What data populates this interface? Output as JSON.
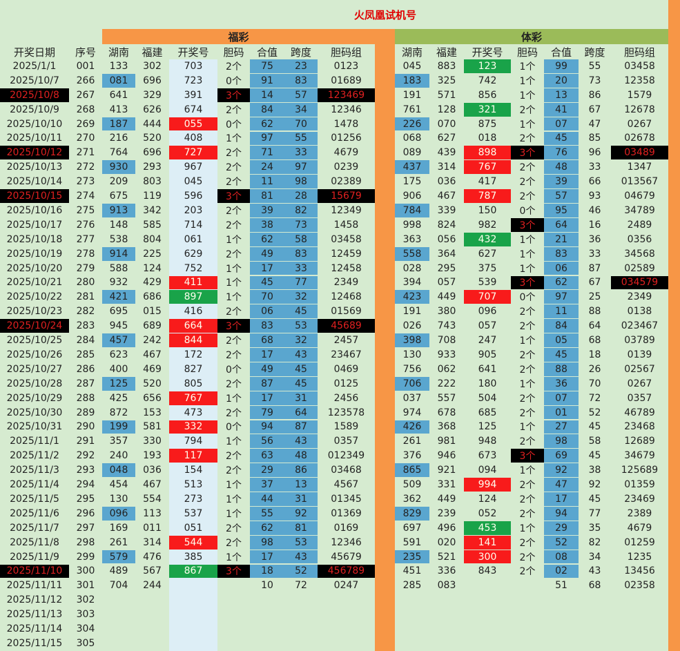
{
  "header": {
    "title": "火凤凰试机号",
    "groups": [
      "福彩",
      "体彩"
    ],
    "columns": [
      "开奖日期",
      "序号",
      "湖南",
      "福建",
      "开奖号",
      "胆码",
      "合值",
      "跨度",
      "胆码组",
      "湖南",
      "福建",
      "开奖号",
      "胆码",
      "合值",
      "跨度",
      "胆码组"
    ]
  },
  "table": {
    "rows": [
      [
        "2025/1/1",
        "001",
        "133",
        "302",
        "703",
        "2个",
        "75",
        "23",
        "0123",
        "045",
        "883",
        "123",
        "1个",
        "99",
        "55",
        "03458"
      ],
      [
        "2025/10/7",
        "266",
        "081",
        "696",
        "723",
        "0个",
        "91",
        "83",
        "01689",
        "183",
        "325",
        "742",
        "1个",
        "20",
        "73",
        "12358"
      ],
      [
        "2025/10/8",
        "267",
        "641",
        "329",
        "391",
        "3个",
        "14",
        "57",
        "123469",
        "191",
        "571",
        "856",
        "1个",
        "13",
        "86",
        "1579"
      ],
      [
        "2025/10/9",
        "268",
        "413",
        "626",
        "674",
        "2个",
        "84",
        "34",
        "12346",
        "761",
        "128",
        "321",
        "2个",
        "41",
        "67",
        "12678"
      ],
      [
        "2025/10/10",
        "269",
        "187",
        "444",
        "055",
        "0个",
        "62",
        "70",
        "1478",
        "226",
        "070",
        "875",
        "1个",
        "07",
        "47",
        "0267"
      ],
      [
        "2025/10/11",
        "270",
        "216",
        "520",
        "408",
        "1个",
        "97",
        "55",
        "01256",
        "068",
        "627",
        "018",
        "2个",
        "45",
        "85",
        "02678"
      ],
      [
        "2025/10/12",
        "271",
        "764",
        "696",
        "727",
        "2个",
        "71",
        "33",
        "4679",
        "089",
        "439",
        "898",
        "3个",
        "76",
        "96",
        "03489"
      ],
      [
        "2025/10/13",
        "272",
        "930",
        "293",
        "967",
        "2个",
        "24",
        "97",
        "0239",
        "437",
        "314",
        "767",
        "2个",
        "48",
        "33",
        "1347"
      ],
      [
        "2025/10/14",
        "273",
        "209",
        "803",
        "045",
        "2个",
        "11",
        "98",
        "02389",
        "175",
        "036",
        "417",
        "2个",
        "39",
        "66",
        "013567"
      ],
      [
        "2025/10/15",
        "274",
        "675",
        "119",
        "596",
        "3个",
        "81",
        "28",
        "15679",
        "906",
        "467",
        "787",
        "2个",
        "57",
        "93",
        "04679"
      ],
      [
        "2025/10/16",
        "275",
        "913",
        "342",
        "203",
        "2个",
        "39",
        "82",
        "12349",
        "784",
        "339",
        "150",
        "0个",
        "95",
        "46",
        "34789"
      ],
      [
        "2025/10/17",
        "276",
        "148",
        "585",
        "714",
        "2个",
        "38",
        "73",
        "1458",
        "998",
        "824",
        "982",
        "3个",
        "64",
        "16",
        "2489"
      ],
      [
        "2025/10/18",
        "277",
        "538",
        "804",
        "061",
        "1个",
        "62",
        "58",
        "03458",
        "363",
        "056",
        "432",
        "1个",
        "21",
        "36",
        "0356"
      ],
      [
        "2025/10/19",
        "278",
        "914",
        "225",
        "629",
        "2个",
        "49",
        "83",
        "12459",
        "558",
        "364",
        "627",
        "1个",
        "83",
        "33",
        "34568"
      ],
      [
        "2025/10/20",
        "279",
        "588",
        "124",
        "752",
        "1个",
        "17",
        "33",
        "12458",
        "028",
        "295",
        "375",
        "1个",
        "06",
        "87",
        "02589"
      ],
      [
        "2025/10/21",
        "280",
        "932",
        "429",
        "411",
        "1个",
        "45",
        "77",
        "2349",
        "394",
        "057",
        "539",
        "3个",
        "62",
        "67",
        "034579"
      ],
      [
        "2025/10/22",
        "281",
        "421",
        "686",
        "897",
        "1个",
        "70",
        "32",
        "12468",
        "423",
        "449",
        "707",
        "0个",
        "97",
        "25",
        "2349"
      ],
      [
        "2025/10/23",
        "282",
        "695",
        "015",
        "416",
        "2个",
        "06",
        "45",
        "01569",
        "191",
        "380",
        "096",
        "2个",
        "11",
        "88",
        "0138"
      ],
      [
        "2025/10/24",
        "283",
        "945",
        "689",
        "664",
        "3个",
        "83",
        "53",
        "45689",
        "026",
        "743",
        "057",
        "2个",
        "84",
        "64",
        "023467"
      ],
      [
        "2025/10/25",
        "284",
        "457",
        "242",
        "844",
        "2个",
        "68",
        "32",
        "2457",
        "398",
        "708",
        "247",
        "1个",
        "05",
        "68",
        "03789"
      ],
      [
        "2025/10/26",
        "285",
        "623",
        "467",
        "172",
        "2个",
        "17",
        "43",
        "23467",
        "130",
        "933",
        "905",
        "2个",
        "45",
        "18",
        "0139"
      ],
      [
        "2025/10/27",
        "286",
        "400",
        "469",
        "827",
        "0个",
        "49",
        "45",
        "0469",
        "756",
        "062",
        "641",
        "2个",
        "88",
        "26",
        "02567"
      ],
      [
        "2025/10/28",
        "287",
        "125",
        "520",
        "805",
        "2个",
        "87",
        "45",
        "0125",
        "706",
        "222",
        "180",
        "1个",
        "36",
        "70",
        "0267"
      ],
      [
        "2025/10/29",
        "288",
        "425",
        "656",
        "767",
        "1个",
        "17",
        "31",
        "2456",
        "037",
        "557",
        "504",
        "2个",
        "07",
        "72",
        "0357"
      ],
      [
        "2025/10/30",
        "289",
        "872",
        "153",
        "473",
        "2个",
        "79",
        "64",
        "123578",
        "974",
        "678",
        "685",
        "2个",
        "01",
        "52",
        "46789"
      ],
      [
        "2025/10/31",
        "290",
        "199",
        "581",
        "332",
        "0个",
        "94",
        "87",
        "1589",
        "426",
        "368",
        "125",
        "1个",
        "27",
        "45",
        "23468"
      ],
      [
        "2025/11/1",
        "291",
        "357",
        "330",
        "794",
        "1个",
        "56",
        "43",
        "0357",
        "261",
        "981",
        "948",
        "2个",
        "98",
        "58",
        "12689"
      ],
      [
        "2025/11/2",
        "292",
        "240",
        "193",
        "117",
        "2个",
        "63",
        "48",
        "012349",
        "376",
        "946",
        "673",
        "3个",
        "69",
        "45",
        "34679"
      ],
      [
        "2025/11/3",
        "293",
        "048",
        "036",
        "154",
        "2个",
        "29",
        "86",
        "03468",
        "865",
        "921",
        "094",
        "1个",
        "92",
        "38",
        "125689"
      ],
      [
        "2025/11/4",
        "294",
        "454",
        "467",
        "513",
        "1个",
        "37",
        "13",
        "4567",
        "509",
        "331",
        "994",
        "2个",
        "47",
        "92",
        "01359"
      ],
      [
        "2025/11/5",
        "295",
        "130",
        "554",
        "273",
        "1个",
        "44",
        "31",
        "01345",
        "362",
        "449",
        "124",
        "2个",
        "17",
        "45",
        "23469"
      ],
      [
        "2025/11/6",
        "296",
        "096",
        "113",
        "537",
        "1个",
        "55",
        "92",
        "01369",
        "829",
        "239",
        "052",
        "2个",
        "94",
        "77",
        "2389"
      ],
      [
        "2025/11/7",
        "297",
        "169",
        "011",
        "051",
        "2个",
        "62",
        "81",
        "0169",
        "697",
        "496",
        "453",
        "1个",
        "29",
        "35",
        "4679"
      ],
      [
        "2025/11/8",
        "298",
        "261",
        "314",
        "544",
        "2个",
        "98",
        "53",
        "12346",
        "591",
        "020",
        "141",
        "2个",
        "52",
        "82",
        "01259"
      ],
      [
        "2025/11/9",
        "299",
        "579",
        "476",
        "385",
        "1个",
        "17",
        "43",
        "45679",
        "235",
        "521",
        "300",
        "2个",
        "08",
        "34",
        "1235"
      ],
      [
        "2025/11/10",
        "300",
        "489",
        "567",
        "867",
        "3个",
        "18",
        "52",
        "456789",
        "451",
        "336",
        "843",
        "2个",
        "02",
        "43",
        "13456"
      ],
      [
        "2025/11/11",
        "301",
        "704",
        "244",
        null,
        null,
        "10",
        "72",
        "0247",
        "285",
        "083",
        null,
        null,
        "51",
        "68",
        "02358"
      ],
      [
        "2025/11/12",
        "302"
      ],
      [
        "2025/11/13",
        "303"
      ],
      [
        "2025/11/14",
        "304"
      ],
      [
        "2025/11/15",
        "305"
      ]
    ]
  }
}
